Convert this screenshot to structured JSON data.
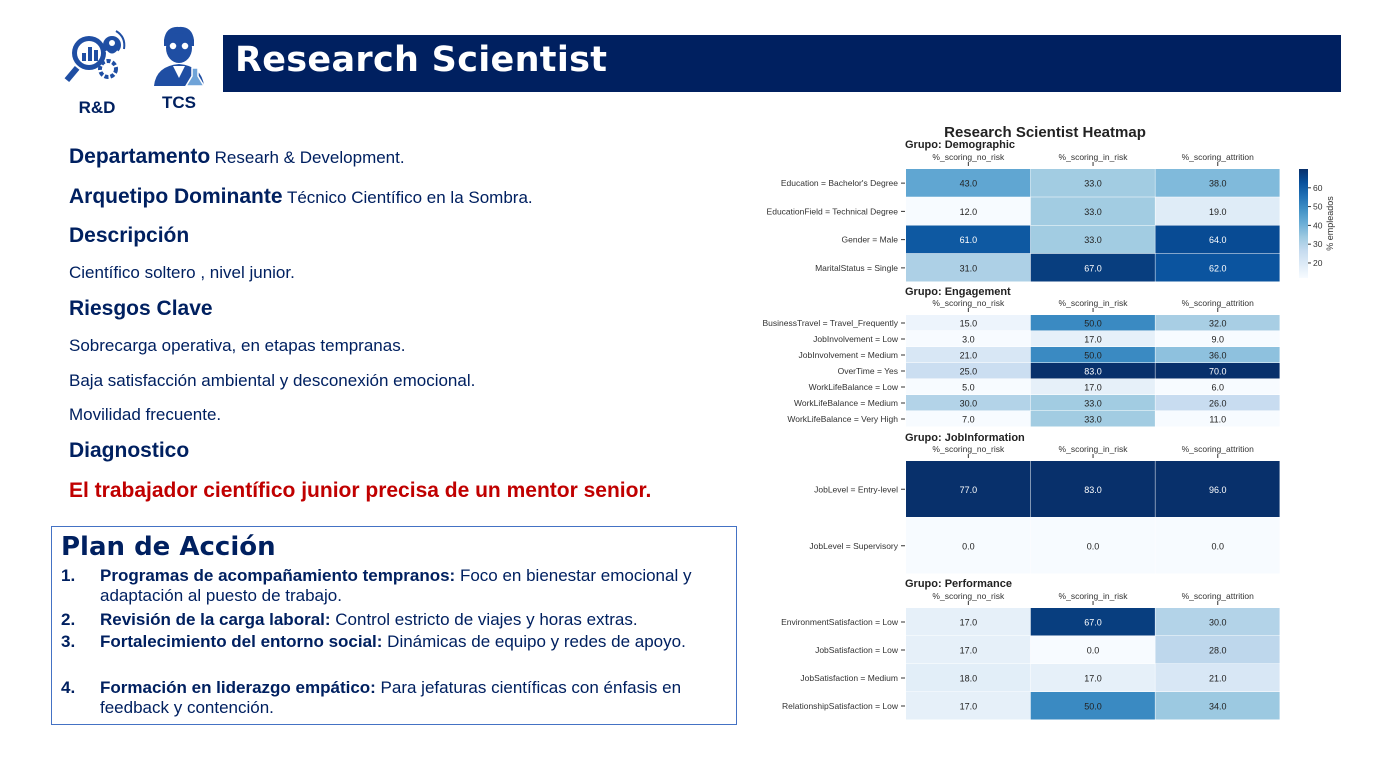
{
  "header": {
    "icon1": {
      "name": "rd-analytics-icon",
      "label": "R&D"
    },
    "icon2": {
      "name": "scientist-icon",
      "label": "TCS"
    },
    "title": "Research Scientist"
  },
  "profile": {
    "departamento_label": "Departamento",
    "departamento_value": "Researh & Development.",
    "arquetipo_label": "Arquetipo Dominante",
    "arquetipo_value": "Técnico Científico en la Sombra.",
    "descripcion_label": "Descripción",
    "descripcion_value": "Científico soltero , nivel junior.",
    "riesgos_label": "Riesgos Clave",
    "riesgos": [
      "Sobrecarga operativa, en etapas tempranas.",
      "Baja satisfacción ambiental y desconexión emocional.",
      "Movilidad frecuente."
    ],
    "diagnostico_label": "Diagnostico",
    "diagnostico_value": "El trabajador científico junior precisa de un mentor senior."
  },
  "plan": {
    "title": "Plan de Acción",
    "items": [
      {
        "num": "1.",
        "bold": "Programas de acompañamiento tempranos:",
        "text": " Foco en bienestar emocional y adaptación al puesto de trabajo."
      },
      {
        "num": "2.",
        "bold": "Revisión de la carga laboral:",
        "text": " Control estricto de viajes y horas extras."
      },
      {
        "num": "3.",
        "bold": "Fortalecimiento del entorno social:",
        "text": " Dinámicas de equipo y redes de apoyo."
      },
      {
        "num": "4.",
        "bold": "Formación en liderazgo empático:",
        "text": " Para jefaturas científicas con énfasis en feedback y contención."
      }
    ]
  },
  "chart_data": {
    "type": "heatmap",
    "title": "Research Scientist Heatmap",
    "columns": [
      "%_scoring_no_risk",
      "%_scoring_in_risk",
      "%_scoring_attrition"
    ],
    "colormap": "Blues",
    "vmin": 12,
    "vmax": 70,
    "colorbar": {
      "label": "% empleados",
      "ticks": [
        20,
        30,
        40,
        50,
        60
      ]
    },
    "groups": [
      {
        "name": "Grupo: Demographic",
        "rows": [
          {
            "label": "Education = Bachelor's Degree",
            "values": [
              43.0,
              33.0,
              38.0
            ]
          },
          {
            "label": "EducationField = Technical Degree",
            "values": [
              12.0,
              33.0,
              19.0
            ]
          },
          {
            "label": "Gender = Male",
            "values": [
              61.0,
              33.0,
              64.0
            ]
          },
          {
            "label": "MaritalStatus = Single",
            "values": [
              31.0,
              67.0,
              62.0
            ]
          }
        ]
      },
      {
        "name": "Grupo: Engagement",
        "rows": [
          {
            "label": "BusinessTravel = Travel_Frequently",
            "values": [
              15.0,
              50.0,
              32.0
            ]
          },
          {
            "label": "JobInvolvement = Low",
            "values": [
              3.0,
              17.0,
              9.0
            ]
          },
          {
            "label": "JobInvolvement = Medium",
            "values": [
              21.0,
              50.0,
              36.0
            ]
          },
          {
            "label": "OverTime = Yes",
            "values": [
              25.0,
              83.0,
              70.0
            ]
          },
          {
            "label": "WorkLifeBalance = Low",
            "values": [
              5.0,
              17.0,
              6.0
            ]
          },
          {
            "label": "WorkLifeBalance = Medium",
            "values": [
              30.0,
              33.0,
              26.0
            ]
          },
          {
            "label": "WorkLifeBalance = Very High",
            "values": [
              7.0,
              33.0,
              11.0
            ]
          }
        ]
      },
      {
        "name": "Grupo: JobInformation",
        "rows": [
          {
            "label": "JobLevel = Entry-level",
            "values": [
              77.0,
              83.0,
              96.0
            ]
          },
          {
            "label": "JobLevel = Supervisory",
            "values": [
              0.0,
              0.0,
              0.0
            ]
          }
        ]
      },
      {
        "name": "Grupo: Performance",
        "rows": [
          {
            "label": "EnvironmentSatisfaction = Low",
            "values": [
              17.0,
              67.0,
              30.0
            ]
          },
          {
            "label": "JobSatisfaction = Low",
            "values": [
              17.0,
              0.0,
              28.0
            ]
          },
          {
            "label": "JobSatisfaction = Medium",
            "values": [
              18.0,
              17.0,
              21.0
            ]
          },
          {
            "label": "RelationshipSatisfaction = Low",
            "values": [
              17.0,
              50.0,
              34.0
            ]
          }
        ]
      }
    ]
  }
}
